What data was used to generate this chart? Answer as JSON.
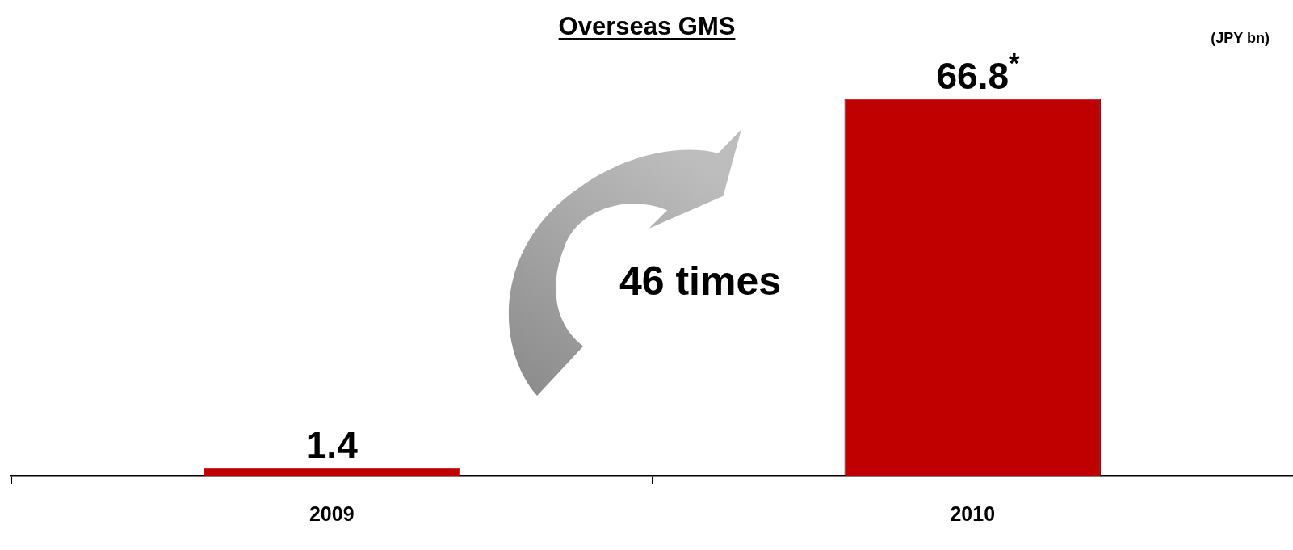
{
  "chart_data": {
    "type": "bar",
    "title": "Overseas GMS",
    "ylabel": "(JPY bn)",
    "categories": [
      "2009",
      "2010"
    ],
    "values": [
      1.4,
      66.8
    ],
    "color": "#c00000",
    "value_labels": [
      "1.4",
      "66.8$^{*}$"
    ],
    "annotations": [
      "46 times"
    ],
    "legend": false
  }
}
